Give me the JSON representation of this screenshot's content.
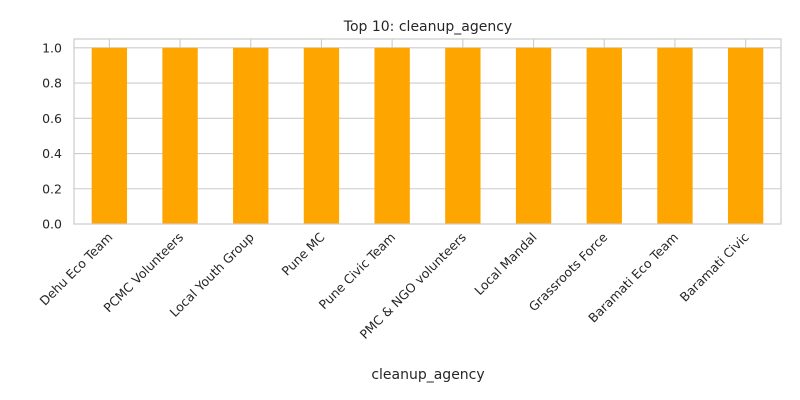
{
  "chart_data": {
    "type": "bar",
    "title": "Top 10: cleanup_agency",
    "xlabel": "cleanup_agency",
    "ylabel": "",
    "categories": [
      "Dehu Eco Team",
      "PCMC Volunteers",
      "Local Youth Group",
      "Pune MC",
      "Pune Civic Team",
      "PMC & NGO volunteers",
      "Local Mandal",
      "Grassroots Force",
      "Baramati Eco Team",
      "Baramati Civic"
    ],
    "values": [
      1,
      1,
      1,
      1,
      1,
      1,
      1,
      1,
      1,
      1
    ],
    "ylim": [
      0,
      1.05
    ],
    "yticks": [
      "0.0",
      "0.2",
      "0.4",
      "0.6",
      "0.8",
      "1.0"
    ],
    "bar_color": "#FFA500",
    "grid": true,
    "legend": "none"
  }
}
